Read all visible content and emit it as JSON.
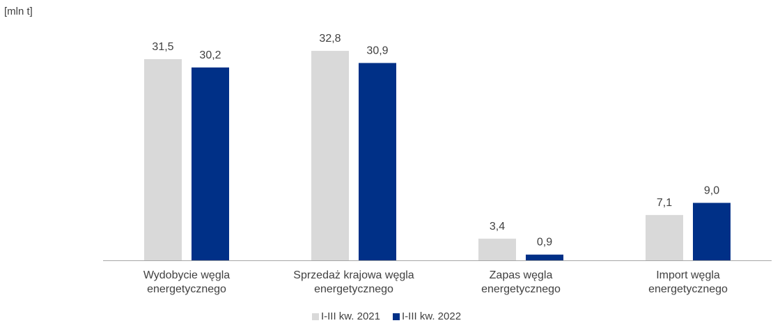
{
  "unit_label": "[mln t]",
  "colors": {
    "series_2021": "#d9d9d9",
    "series_2022": "#003087",
    "axis": "#a6a6a6"
  },
  "chart_data": {
    "type": "bar",
    "categories": [
      [
        "Wydobycie węgla",
        "energetycznego"
      ],
      [
        "Sprzedaż krajowa węgla",
        "energetycznego"
      ],
      [
        "Zapas węgla",
        "energetycznego"
      ],
      [
        "Import węgla",
        "energetycznego"
      ]
    ],
    "series": [
      {
        "name": "I-III kw. 2021",
        "values": [
          31.5,
          32.8,
          3.4,
          7.1
        ],
        "labels": [
          "31,5",
          "32,8",
          "3,4",
          "7,1"
        ]
      },
      {
        "name": "I-III kw. 2022",
        "values": [
          30.2,
          30.9,
          0.9,
          9.0
        ],
        "labels": [
          "30,2",
          "30,9",
          "0,9",
          "9,0"
        ]
      }
    ],
    "ylim": [
      0,
      35
    ],
    "grid": false,
    "legend_position": "bottom"
  }
}
